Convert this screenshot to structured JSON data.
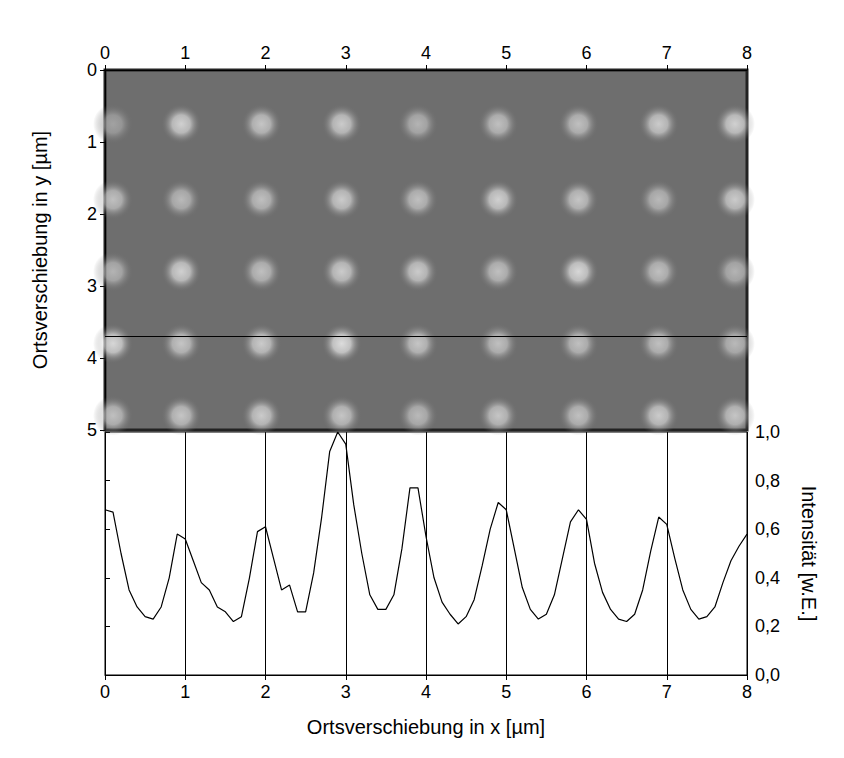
{
  "chart_data": [
    {
      "type": "image",
      "y_label": "Ortsverschiebung in y [µm]",
      "xlim": [
        0,
        8
      ],
      "xticks": [
        0,
        1,
        2,
        3,
        4,
        5,
        6,
        7,
        8
      ],
      "ylim": [
        0,
        5
      ],
      "yticks": [
        0,
        1,
        2,
        3,
        4,
        5
      ],
      "spots": {
        "x": [
          0.1,
          0.95,
          1.95,
          2.95,
          3.9,
          4.9,
          5.9,
          6.9,
          7.85,
          0.1,
          0.95,
          1.95,
          2.95,
          3.9,
          4.9,
          5.9,
          6.9,
          7.85,
          0.1,
          0.95,
          1.95,
          2.95,
          3.9,
          4.9,
          5.9,
          6.9,
          7.85,
          0.1,
          0.95,
          1.95,
          2.95,
          3.9,
          4.9,
          5.9,
          6.9,
          7.85,
          0.1,
          0.95,
          1.95,
          2.95,
          3.9,
          4.9,
          5.9,
          6.9,
          7.85
        ],
        "y": [
          0.75,
          0.75,
          0.75,
          0.75,
          0.75,
          0.75,
          0.75,
          0.75,
          0.75,
          1.8,
          1.8,
          1.8,
          1.8,
          1.8,
          1.8,
          1.8,
          1.8,
          1.8,
          2.8,
          2.8,
          2.8,
          2.8,
          2.8,
          2.8,
          2.8,
          2.8,
          2.8,
          3.8,
          3.8,
          3.8,
          3.8,
          3.8,
          3.8,
          3.8,
          3.8,
          3.8,
          4.8,
          4.8,
          4.8,
          4.8,
          4.8,
          4.8,
          4.8,
          4.8,
          4.8
        ],
        "brightness": [
          0.45,
          0.85,
          0.75,
          0.8,
          0.6,
          0.7,
          0.7,
          0.8,
          0.85,
          0.7,
          0.65,
          0.7,
          0.8,
          0.7,
          0.85,
          0.75,
          0.65,
          0.8,
          0.6,
          0.85,
          0.7,
          0.8,
          0.8,
          0.7,
          0.9,
          0.7,
          0.6,
          0.9,
          0.75,
          0.8,
          0.95,
          0.75,
          0.7,
          0.7,
          0.7,
          0.65,
          0.7,
          0.75,
          0.8,
          0.75,
          0.65,
          0.75,
          0.7,
          0.8,
          0.75
        ]
      },
      "profile_line_y": 3.7
    },
    {
      "type": "line",
      "x_label": "Ortsverschiebung in x [µm]",
      "y_label": "Intensität [w.E.]",
      "xlim": [
        0,
        8
      ],
      "xticks": [
        0,
        1,
        2,
        3,
        4,
        5,
        6,
        7,
        8
      ],
      "ylim": [
        0,
        1
      ],
      "yticks": [
        {
          "value": 0,
          "label": "0,0"
        },
        {
          "value": 0.2,
          "label": "0,2"
        },
        {
          "value": 0.4,
          "label": "0,4"
        },
        {
          "value": 0.6,
          "label": "0,6"
        },
        {
          "value": 0.8,
          "label": "0,8"
        },
        {
          "value": 1,
          "label": "1,0"
        }
      ],
      "grid": "x",
      "color": "#000000",
      "x": [
        0,
        0.1,
        0.2,
        0.3,
        0.4,
        0.5,
        0.6,
        0.7,
        0.8,
        0.9,
        1.0,
        1.1,
        1.2,
        1.3,
        1.4,
        1.5,
        1.6,
        1.7,
        1.8,
        1.9,
        2.0,
        2.1,
        2.2,
        2.3,
        2.4,
        2.5,
        2.6,
        2.7,
        2.8,
        2.9,
        3.0,
        3.1,
        3.2,
        3.3,
        3.4,
        3.5,
        3.6,
        3.7,
        3.8,
        3.9,
        4.0,
        4.1,
        4.2,
        4.3,
        4.4,
        4.5,
        4.6,
        4.7,
        4.8,
        4.9,
        5.0,
        5.1,
        5.2,
        5.3,
        5.4,
        5.5,
        5.6,
        5.7,
        5.8,
        5.9,
        6.0,
        6.1,
        6.2,
        6.3,
        6.4,
        6.5,
        6.6,
        6.7,
        6.8,
        6.9,
        7.0,
        7.1,
        7.2,
        7.3,
        7.4,
        7.5,
        7.6,
        7.7,
        7.8,
        7.9,
        8.0
      ],
      "values": [
        0.68,
        0.67,
        0.5,
        0.35,
        0.28,
        0.24,
        0.23,
        0.28,
        0.4,
        0.58,
        0.56,
        0.47,
        0.38,
        0.35,
        0.28,
        0.26,
        0.22,
        0.24,
        0.4,
        0.59,
        0.61,
        0.48,
        0.35,
        0.37,
        0.26,
        0.26,
        0.42,
        0.65,
        0.92,
        1.0,
        0.95,
        0.7,
        0.5,
        0.33,
        0.27,
        0.27,
        0.33,
        0.52,
        0.77,
        0.77,
        0.57,
        0.4,
        0.3,
        0.25,
        0.21,
        0.24,
        0.31,
        0.45,
        0.6,
        0.71,
        0.68,
        0.52,
        0.36,
        0.27,
        0.23,
        0.25,
        0.33,
        0.48,
        0.63,
        0.68,
        0.64,
        0.46,
        0.34,
        0.27,
        0.23,
        0.22,
        0.25,
        0.35,
        0.51,
        0.65,
        0.62,
        0.48,
        0.35,
        0.27,
        0.23,
        0.24,
        0.28,
        0.38,
        0.47,
        0.53,
        0.58
      ]
    }
  ]
}
